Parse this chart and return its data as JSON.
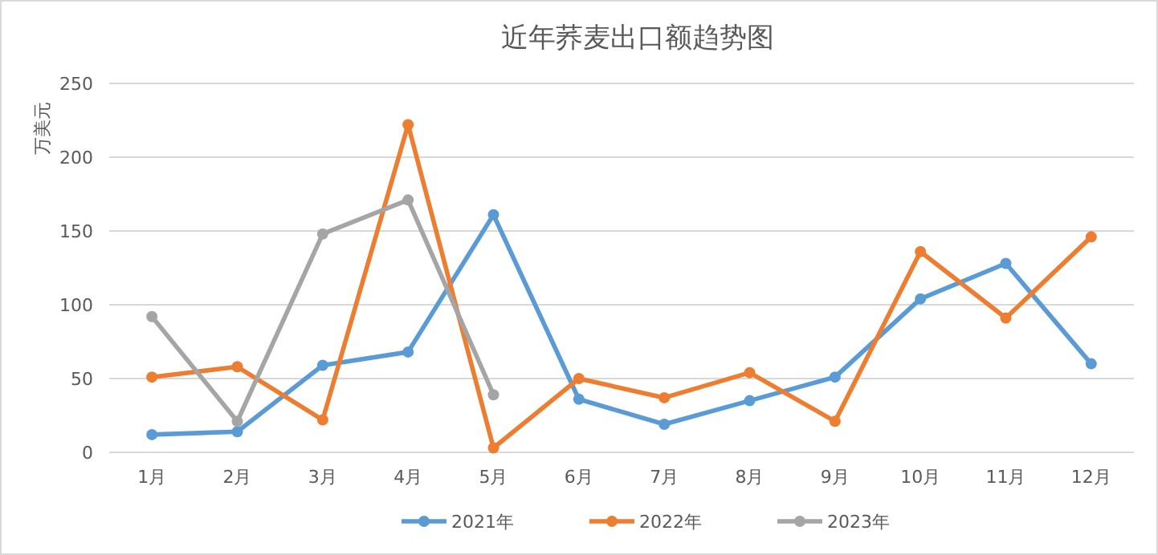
{
  "chart_data": {
    "type": "line",
    "title": "近年荞麦出口额趋势图",
    "ylabel": "万美元",
    "categories": [
      "1月",
      "2月",
      "3月",
      "4月",
      "5月",
      "6月",
      "7月",
      "8月",
      "9月",
      "10月",
      "11月",
      "12月"
    ],
    "series": [
      {
        "name": "2021年",
        "color": "#5b9bd5",
        "values": [
          12,
          14,
          59,
          68,
          161,
          36,
          19,
          35,
          51,
          104,
          128,
          60
        ]
      },
      {
        "name": "2022年",
        "color": "#ed7d31",
        "values": [
          51,
          58,
          22,
          222,
          3,
          50,
          37,
          54,
          21,
          136,
          91,
          146
        ]
      },
      {
        "name": "2023年",
        "color": "#a5a5a5",
        "values": [
          92,
          21,
          148,
          171,
          39,
          null,
          null,
          null,
          null,
          null,
          null,
          null
        ]
      }
    ],
    "ylim": [
      0,
      250
    ],
    "yticks": [
      0,
      50,
      100,
      150,
      200,
      250
    ],
    "grid": "y",
    "legend": "bottom",
    "marker": "circle",
    "line_style": "solid"
  }
}
